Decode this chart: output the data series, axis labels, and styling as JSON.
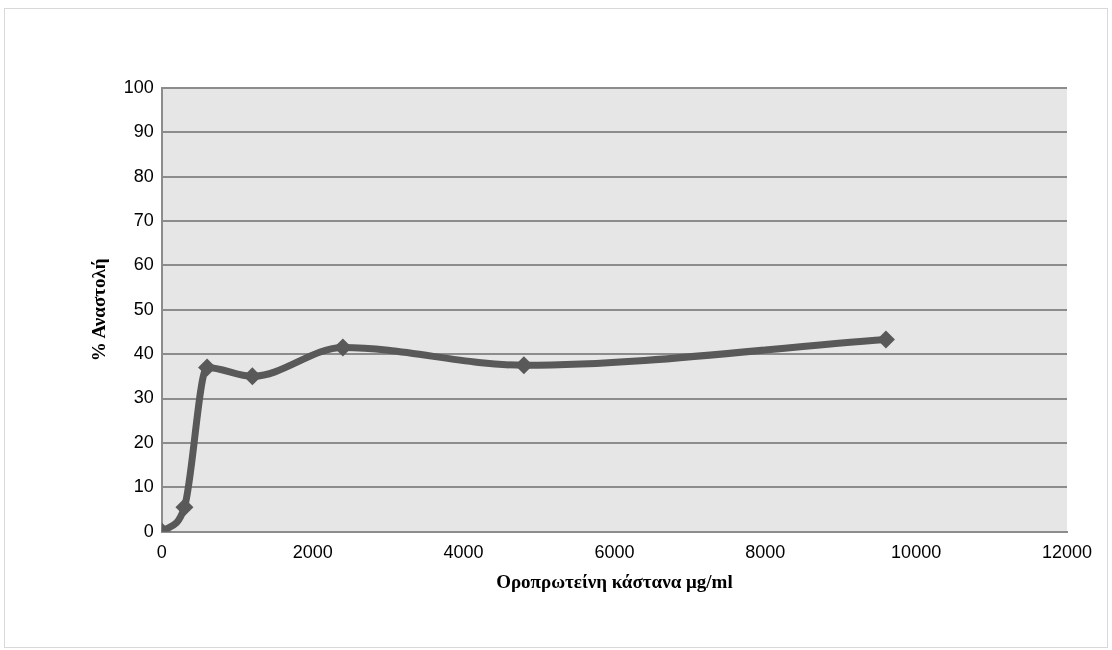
{
  "chart_data": {
    "type": "line",
    "xlabel": "Οροπρωτείνη κάστανα μg/ml",
    "ylabel": "% Αναστολή",
    "x": [
      0,
      300,
      600,
      1200,
      2400,
      4800,
      9600
    ],
    "series": [
      {
        "color": "#595959",
        "values": [
          0,
          5.5,
          37,
          35,
          41.5,
          37.5,
          43.3
        ]
      }
    ],
    "xlim": [
      0,
      12000
    ],
    "xticks": [
      0,
      2000,
      4000,
      6000,
      8000,
      10000,
      12000
    ],
    "ylim": [
      0,
      100
    ],
    "yticks": [
      0,
      10,
      20,
      30,
      40,
      50,
      60,
      70,
      80,
      90,
      100
    ],
    "grid": "y",
    "legend": false,
    "marker": "diamond",
    "line_style": "solid"
  }
}
